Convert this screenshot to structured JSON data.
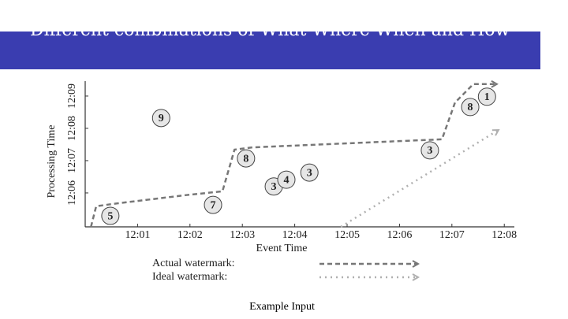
{
  "header": {
    "title": "Different combinations of What Where When and How"
  },
  "chart_data": {
    "type": "scatter",
    "x_label": "Event Time",
    "y_label": "Processing Time",
    "xlim": [
      0,
      8.2
    ],
    "ylim": [
      4.95,
      9.45
    ],
    "xticks": [
      {
        "value": 1,
        "label": "12:01"
      },
      {
        "value": 2,
        "label": "12:02"
      },
      {
        "value": 3,
        "label": "12:03"
      },
      {
        "value": 4,
        "label": "12:04"
      },
      {
        "value": 5,
        "label": "12:05"
      },
      {
        "value": 6,
        "label": "12:06"
      },
      {
        "value": 7,
        "label": "12:07"
      },
      {
        "value": 8,
        "label": "12:08"
      }
    ],
    "yticks": [
      {
        "value": 6,
        "label": "12:06"
      },
      {
        "value": 7,
        "label": "12:07"
      },
      {
        "value": 8,
        "label": "12:08"
      },
      {
        "value": 9,
        "label": "12:09"
      }
    ],
    "points": {
      "labels": [
        "9",
        "5",
        "7",
        "8",
        "3",
        "4",
        "3",
        "3",
        "8",
        "1"
      ],
      "x": [
        1.45,
        0.48,
        2.44,
        3.07,
        3.6,
        3.84,
        4.28,
        6.58,
        7.35,
        7.67
      ],
      "y": [
        8.32,
        5.29,
        5.63,
        7.07,
        6.2,
        6.41,
        6.63,
        7.32,
        8.66,
        8.98
      ],
      "color": "#e6e6e6"
    },
    "series": [
      {
        "name": "Actual watermark:",
        "color": "#777777",
        "dash": "6,4",
        "x": [
          0.11,
          0.21,
          0.63,
          1.91,
          2.62,
          2.85,
          3.19,
          6.36,
          6.81,
          7.06,
          7.41,
          7.86
        ],
        "values": [
          4.95,
          5.59,
          5.68,
          5.93,
          6.05,
          7.34,
          7.41,
          7.63,
          7.66,
          8.8,
          9.37,
          9.37
        ]
      },
      {
        "name": "Ideal watermark:",
        "color": "#b0b0b0",
        "dash": "2,5",
        "x": [
          4.88,
          7.89
        ],
        "values": [
          4.95,
          7.95
        ]
      }
    ]
  },
  "caption": "Example Input"
}
